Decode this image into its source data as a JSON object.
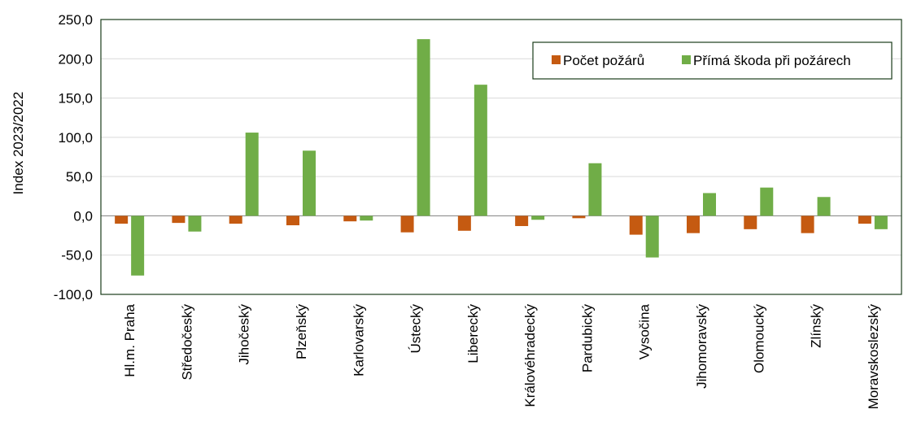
{
  "chart_data": {
    "type": "bar",
    "title": "",
    "xlabel": "",
    "ylabel": "Index 2023/2022",
    "ylim": [
      -100,
      250
    ],
    "yticks": [
      250,
      200,
      150,
      100,
      50,
      0,
      -50,
      -100
    ],
    "ytick_labels": [
      "250,0",
      "200,0",
      "150,0",
      "100,0",
      "50,0",
      "0,0",
      "-50,0",
      "-100,0"
    ],
    "grid": true,
    "legend_position": "top-right",
    "categories": [
      "Hl.m. Praha",
      "Středočeský",
      "Jihočeský",
      "Plzeňský",
      "Karlovarský",
      "Ústecký",
      "Liberecký",
      "Královéhradecký",
      "Pardubický",
      "Vysočina",
      "Jihomoravský",
      "Olomoucký",
      "Zlínský",
      "Moravskoslezský"
    ],
    "series": [
      {
        "name": "Počet požárů",
        "color": "#c55a11",
        "values": [
          -10,
          -9,
          -10,
          -12,
          -7,
          -21,
          -19,
          -13,
          -3,
          -24,
          -22,
          -17,
          -22,
          -10
        ]
      },
      {
        "name": "Přímá škoda při požárech",
        "color": "#70ad47",
        "values": [
          -76,
          -20,
          106,
          83,
          -6,
          225,
          167,
          -5,
          67,
          -53,
          29,
          36,
          24,
          -17
        ]
      }
    ]
  }
}
